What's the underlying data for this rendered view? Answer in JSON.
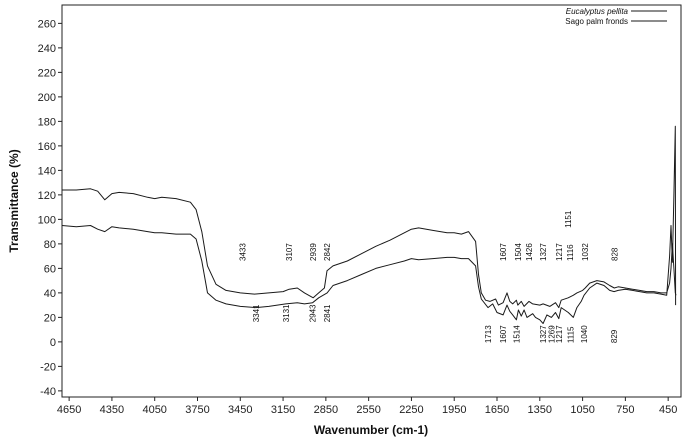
{
  "chart_data": {
    "type": "line",
    "title": "",
    "xlabel": "Wavenumber (cm-1)",
    "ylabel": "Transmittance (%)",
    "xlim": [
      4700,
      360
    ],
    "ylim": [
      -45,
      275
    ],
    "x_reversed": true,
    "grid": false,
    "legend_position": "top-right",
    "x_ticks": [
      4650,
      4350,
      4050,
      3750,
      3450,
      3150,
      2850,
      2550,
      2250,
      1950,
      1650,
      1350,
      1050,
      750,
      450
    ],
    "y_ticks": [
      -40,
      -20,
      0,
      20,
      40,
      60,
      80,
      100,
      120,
      140,
      160,
      180,
      200,
      220,
      240,
      260
    ],
    "series": [
      {
        "name": "Eucalyptus pellita",
        "points": [
          [
            4700,
            124
          ],
          [
            4600,
            124
          ],
          [
            4500,
            125
          ],
          [
            4450,
            123
          ],
          [
            4400,
            116
          ],
          [
            4350,
            121
          ],
          [
            4300,
            122
          ],
          [
            4200,
            121
          ],
          [
            4100,
            118
          ],
          [
            4050,
            117
          ],
          [
            4000,
            118
          ],
          [
            3900,
            117
          ],
          [
            3800,
            114
          ],
          [
            3760,
            108
          ],
          [
            3720,
            90
          ],
          [
            3680,
            62
          ],
          [
            3620,
            47
          ],
          [
            3550,
            42
          ],
          [
            3450,
            40
          ],
          [
            3350,
            39
          ],
          [
            3250,
            40
          ],
          [
            3150,
            41
          ],
          [
            3107,
            43
          ],
          [
            3050,
            44
          ],
          [
            3000,
            40
          ],
          [
            2939,
            36
          ],
          [
            2900,
            40
          ],
          [
            2860,
            44
          ],
          [
            2842,
            58
          ],
          [
            2800,
            62
          ],
          [
            2700,
            66
          ],
          [
            2600,
            72
          ],
          [
            2500,
            78
          ],
          [
            2400,
            83
          ],
          [
            2300,
            89
          ],
          [
            2250,
            92
          ],
          [
            2200,
            93
          ],
          [
            2100,
            91
          ],
          [
            2000,
            89
          ],
          [
            1950,
            89
          ],
          [
            1900,
            88
          ],
          [
            1850,
            90
          ],
          [
            1800,
            82
          ],
          [
            1780,
            55
          ],
          [
            1760,
            40
          ],
          [
            1730,
            34
          ],
          [
            1700,
            33
          ],
          [
            1660,
            35
          ],
          [
            1640,
            30
          ],
          [
            1607,
            32
          ],
          [
            1580,
            40
          ],
          [
            1560,
            33
          ],
          [
            1540,
            31
          ],
          [
            1514,
            34
          ],
          [
            1504,
            30
          ],
          [
            1480,
            33
          ],
          [
            1460,
            29
          ],
          [
            1426,
            33
          ],
          [
            1400,
            31
          ],
          [
            1350,
            30
          ],
          [
            1327,
            31
          ],
          [
            1280,
            29
          ],
          [
            1240,
            32
          ],
          [
            1217,
            28
          ],
          [
            1200,
            34
          ],
          [
            1151,
            36
          ],
          [
            1116,
            38
          ],
          [
            1090,
            40
          ],
          [
            1050,
            42
          ],
          [
            1032,
            44
          ],
          [
            1000,
            48
          ],
          [
            950,
            50
          ],
          [
            900,
            49
          ],
          [
            860,
            46
          ],
          [
            828,
            44
          ],
          [
            800,
            45
          ],
          [
            750,
            44
          ],
          [
            700,
            43
          ],
          [
            650,
            42
          ],
          [
            600,
            41
          ],
          [
            550,
            41
          ],
          [
            500,
            40
          ],
          [
            460,
            40
          ],
          [
            440,
            48
          ],
          [
            430,
            60
          ],
          [
            420,
            80
          ],
          [
            410,
            60
          ],
          [
            400,
            40
          ],
          [
            395,
            38
          ]
        ]
      },
      {
        "name": "Sago palm fronds",
        "points": [
          [
            4700,
            95
          ],
          [
            4600,
            94
          ],
          [
            4500,
            95
          ],
          [
            4450,
            92
          ],
          [
            4400,
            90
          ],
          [
            4350,
            94
          ],
          [
            4300,
            93
          ],
          [
            4200,
            92
          ],
          [
            4100,
            90
          ],
          [
            4050,
            89
          ],
          [
            4000,
            89
          ],
          [
            3900,
            88
          ],
          [
            3800,
            88
          ],
          [
            3760,
            84
          ],
          [
            3720,
            66
          ],
          [
            3680,
            40
          ],
          [
            3620,
            34
          ],
          [
            3550,
            31
          ],
          [
            3450,
            29
          ],
          [
            3341,
            28
          ],
          [
            3250,
            29
          ],
          [
            3131,
            31
          ],
          [
            3050,
            32
          ],
          [
            3000,
            31
          ],
          [
            2943,
            32
          ],
          [
            2900,
            36
          ],
          [
            2841,
            40
          ],
          [
            2800,
            46
          ],
          [
            2700,
            50
          ],
          [
            2600,
            55
          ],
          [
            2500,
            60
          ],
          [
            2400,
            63
          ],
          [
            2300,
            66
          ],
          [
            2250,
            68
          ],
          [
            2200,
            67
          ],
          [
            2100,
            68
          ],
          [
            2000,
            69
          ],
          [
            1950,
            69
          ],
          [
            1900,
            68
          ],
          [
            1850,
            68
          ],
          [
            1800,
            62
          ],
          [
            1780,
            45
          ],
          [
            1760,
            35
          ],
          [
            1713,
            28
          ],
          [
            1680,
            31
          ],
          [
            1650,
            24
          ],
          [
            1607,
            22
          ],
          [
            1580,
            30
          ],
          [
            1560,
            25
          ],
          [
            1540,
            22
          ],
          [
            1514,
            18
          ],
          [
            1500,
            26
          ],
          [
            1480,
            21
          ],
          [
            1460,
            26
          ],
          [
            1440,
            20
          ],
          [
            1400,
            23
          ],
          [
            1380,
            20
          ],
          [
            1350,
            18
          ],
          [
            1327,
            15
          ],
          [
            1300,
            22
          ],
          [
            1269,
            20
          ],
          [
            1240,
            24
          ],
          [
            1217,
            19
          ],
          [
            1200,
            28
          ],
          [
            1150,
            24
          ],
          [
            1115,
            20
          ],
          [
            1090,
            28
          ],
          [
            1060,
            33
          ],
          [
            1040,
            38
          ],
          [
            1000,
            44
          ],
          [
            950,
            48
          ],
          [
            900,
            46
          ],
          [
            860,
            42
          ],
          [
            829,
            41
          ],
          [
            800,
            42
          ],
          [
            750,
            43
          ],
          [
            700,
            42
          ],
          [
            650,
            41
          ],
          [
            600,
            40
          ],
          [
            550,
            40
          ],
          [
            500,
            39
          ],
          [
            460,
            38
          ],
          [
            440,
            70
          ],
          [
            430,
            95
          ],
          [
            420,
            65
          ],
          [
            410,
            120
          ],
          [
            400,
            176
          ],
          [
            398,
            30
          ]
        ]
      }
    ],
    "annotations_upper": [
      {
        "label": "3433",
        "x": 3433,
        "y": 66
      },
      {
        "label": "3107",
        "x": 3107,
        "y": 66
      },
      {
        "label": "2939",
        "x": 2939,
        "y": 66
      },
      {
        "label": "2842",
        "x": 2842,
        "y": 66
      },
      {
        "label": "1607",
        "x": 1607,
        "y": 66
      },
      {
        "label": "1504",
        "x": 1504,
        "y": 66
      },
      {
        "label": "1426",
        "x": 1426,
        "y": 66
      },
      {
        "label": "1327",
        "x": 1327,
        "y": 66
      },
      {
        "label": "1217",
        "x": 1217,
        "y": 66
      },
      {
        "label": "1116",
        "x": 1140,
        "y": 66
      },
      {
        "label": "1151",
        "x": 1151,
        "y": 93
      },
      {
        "label": "1032",
        "x": 1032,
        "y": 66
      },
      {
        "label": "828",
        "x": 828,
        "y": 66
      }
    ],
    "annotations_lower": [
      {
        "label": "3341",
        "x": 3341,
        "y": 16
      },
      {
        "label": "3131",
        "x": 3131,
        "y": 16
      },
      {
        "label": "2943",
        "x": 2943,
        "y": 16
      },
      {
        "label": "2841",
        "x": 2841,
        "y": 16
      },
      {
        "label": "1713",
        "x": 1713,
        "y": -1
      },
      {
        "label": "1607",
        "x": 1607,
        "y": -1
      },
      {
        "label": "1514",
        "x": 1514,
        "y": -1
      },
      {
        "label": "1327",
        "x": 1327,
        "y": -1
      },
      {
        "label": "1269",
        "x": 1269,
        "y": -1
      },
      {
        "label": "1217",
        "x": 1217,
        "y": -1
      },
      {
        "label": "1115",
        "x": 1135,
        "y": -1
      },
      {
        "label": "1040",
        "x": 1040,
        "y": -1
      },
      {
        "label": "829",
        "x": 829,
        "y": -1
      }
    ],
    "colors": {
      "line": "#1a1a1a",
      "axis": "#222222"
    }
  }
}
